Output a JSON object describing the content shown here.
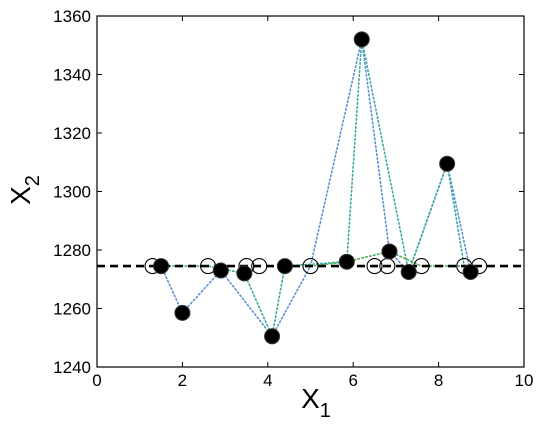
{
  "chart_data": {
    "type": "scatter",
    "xlabel": "X",
    "xlabel_sub": "1",
    "ylabel": "X",
    "ylabel_sub": "2",
    "xlim": [
      0,
      10
    ],
    "ylim": [
      1240,
      1360
    ],
    "xticks": [
      "0",
      "2",
      "4",
      "6",
      "8",
      "10"
    ],
    "yticks": [
      "1240",
      "1260",
      "1280",
      "1300",
      "1320",
      "1340",
      "1360"
    ],
    "grid": false,
    "reference_line": {
      "y": 1274.5,
      "style": "dashed",
      "color": "#000000"
    },
    "series": [
      {
        "marker": "filled-circle",
        "color": "#000000",
        "points": [
          {
            "x": 1.5,
            "y": 1274.5
          },
          {
            "x": 2.0,
            "y": 1258.5
          },
          {
            "x": 2.9,
            "y": 1273.0
          },
          {
            "x": 3.45,
            "y": 1272.0
          },
          {
            "x": 4.1,
            "y": 1250.5
          },
          {
            "x": 4.4,
            "y": 1274.5
          },
          {
            "x": 5.85,
            "y": 1276.0
          },
          {
            "x": 6.2,
            "y": 1352.0
          },
          {
            "x": 6.85,
            "y": 1279.5
          },
          {
            "x": 7.3,
            "y": 1272.5
          },
          {
            "x": 8.2,
            "y": 1309.5
          },
          {
            "x": 8.75,
            "y": 1272.5
          }
        ]
      },
      {
        "marker": "open-circle",
        "color": "#000000",
        "points": [
          {
            "x": 1.3,
            "y": 1274.5
          },
          {
            "x": 2.6,
            "y": 1274.5
          },
          {
            "x": 3.5,
            "y": 1274.5
          },
          {
            "x": 3.8,
            "y": 1274.5
          },
          {
            "x": 5.0,
            "y": 1274.5
          },
          {
            "x": 6.5,
            "y": 1274.5
          },
          {
            "x": 6.8,
            "y": 1274.5
          },
          {
            "x": 7.6,
            "y": 1274.5
          },
          {
            "x": 8.6,
            "y": 1274.5
          },
          {
            "x": 8.95,
            "y": 1274.5
          }
        ]
      }
    ],
    "connector_paths": [
      {
        "color": "#5b8fd6",
        "style": "dotted",
        "points": [
          [
            1.5,
            1274.5
          ],
          [
            2.0,
            1258.5
          ],
          [
            2.9,
            1273.0
          ],
          [
            4.1,
            1250.5
          ],
          [
            5.0,
            1274.5
          ],
          [
            6.2,
            1352.0
          ],
          [
            6.85,
            1279.5
          ],
          [
            7.3,
            1272.5
          ],
          [
            8.2,
            1309.5
          ],
          [
            8.75,
            1272.5
          ]
        ]
      },
      {
        "color": "#3aa7a0",
        "style": "dotted",
        "points": [
          [
            1.5,
            1274.5
          ],
          [
            2.6,
            1274.5
          ],
          [
            3.45,
            1272.0
          ],
          [
            4.1,
            1250.5
          ],
          [
            4.4,
            1274.5
          ],
          [
            5.85,
            1276.0
          ],
          [
            6.2,
            1352.0
          ],
          [
            7.3,
            1272.5
          ],
          [
            8.2,
            1309.5
          ],
          [
            8.6,
            1274.5
          ]
        ]
      },
      {
        "color": "#4caf50",
        "style": "dotted",
        "points": [
          [
            5.0,
            1274.5
          ],
          [
            5.85,
            1276.0
          ],
          [
            6.85,
            1279.5
          ],
          [
            7.6,
            1274.5
          ],
          [
            8.95,
            1274.5
          ]
        ]
      }
    ]
  }
}
